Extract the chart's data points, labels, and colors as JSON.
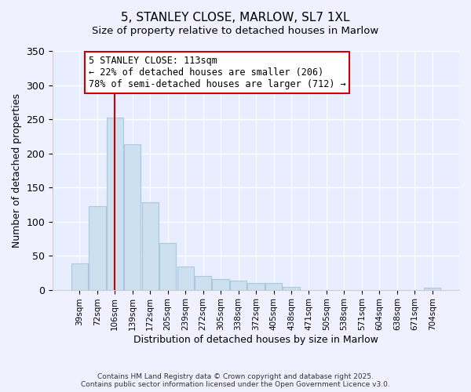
{
  "title": "5, STANLEY CLOSE, MARLOW, SL7 1XL",
  "subtitle": "Size of property relative to detached houses in Marlow",
  "xlabel": "Distribution of detached houses by size in Marlow",
  "ylabel": "Number of detached properties",
  "bar_labels": [
    "39sqm",
    "72sqm",
    "106sqm",
    "139sqm",
    "172sqm",
    "205sqm",
    "239sqm",
    "272sqm",
    "305sqm",
    "338sqm",
    "372sqm",
    "405sqm",
    "438sqm",
    "471sqm",
    "505sqm",
    "538sqm",
    "571sqm",
    "604sqm",
    "638sqm",
    "671sqm",
    "704sqm"
  ],
  "bar_values": [
    39,
    122,
    252,
    213,
    128,
    68,
    34,
    20,
    16,
    13,
    10,
    10,
    4,
    0,
    0,
    0,
    0,
    0,
    0,
    0,
    3
  ],
  "bar_color": "#cde0f0",
  "bar_edge_color": "#a8c8e0",
  "vline_color": "#cc0000",
  "ylim": [
    0,
    350
  ],
  "yticks": [
    0,
    50,
    100,
    150,
    200,
    250,
    300,
    350
  ],
  "annotation_title": "5 STANLEY CLOSE: 113sqm",
  "annotation_line1": "← 22% of detached houses are smaller (206)",
  "annotation_line2": "78% of semi-detached houses are larger (712) →",
  "annotation_box_color": "#ffffff",
  "annotation_box_edge": "#cc0000",
  "footer_line1": "Contains HM Land Registry data © Crown copyright and database right 2025.",
  "footer_line2": "Contains public sector information licensed under the Open Government Licence v3.0.",
  "background_color": "#f0f0ff",
  "plot_bg_color": "#e8eeff",
  "grid_color": "#ffffff",
  "title_fontsize": 11,
  "subtitle_fontsize": 9.5
}
